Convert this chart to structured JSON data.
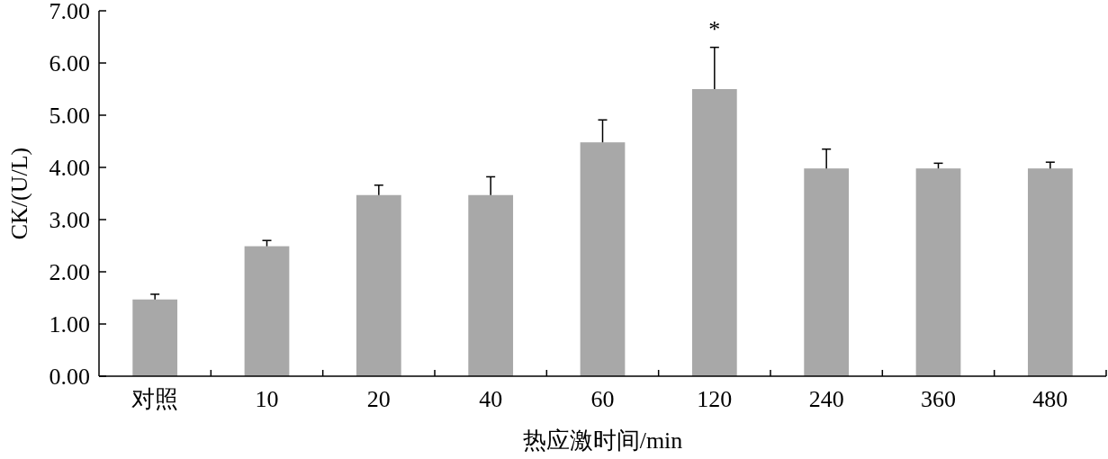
{
  "chart_data": {
    "type": "bar",
    "xlabel": "热应激时间/min",
    "ylabel": "CK/(U/L)",
    "categories": [
      "对照",
      "10",
      "20",
      "40",
      "60",
      "120",
      "240",
      "360",
      "480"
    ],
    "values": [
      1.47,
      2.49,
      3.47,
      3.47,
      4.48,
      5.5,
      3.98,
      3.98,
      3.98
    ],
    "errors": [
      [
        1.47,
        1.57
      ],
      [
        2.49,
        2.6
      ],
      [
        3.47,
        3.66
      ],
      [
        3.47,
        3.82
      ],
      [
        4.48,
        4.91
      ],
      [
        5.5,
        6.3
      ],
      [
        3.98,
        4.35
      ],
      [
        3.98,
        4.08
      ],
      [
        3.98,
        4.1
      ]
    ],
    "color": "#a8a8a8",
    "ylim": [
      0,
      7
    ],
    "yticks": [
      {
        "value": 0,
        "label": "0.00"
      },
      {
        "value": 1,
        "label": "1.00"
      },
      {
        "value": 2,
        "label": "2.00"
      },
      {
        "value": 3,
        "label": "3.00"
      },
      {
        "value": 4,
        "label": "4.00"
      },
      {
        "value": 5,
        "label": "5.00"
      },
      {
        "value": 6,
        "label": "6.00"
      },
      {
        "value": 7,
        "label": "7.00"
      }
    ],
    "annotations": [
      {
        "text": "*",
        "x": "120",
        "y": 6.3
      }
    ],
    "grid": false
  }
}
